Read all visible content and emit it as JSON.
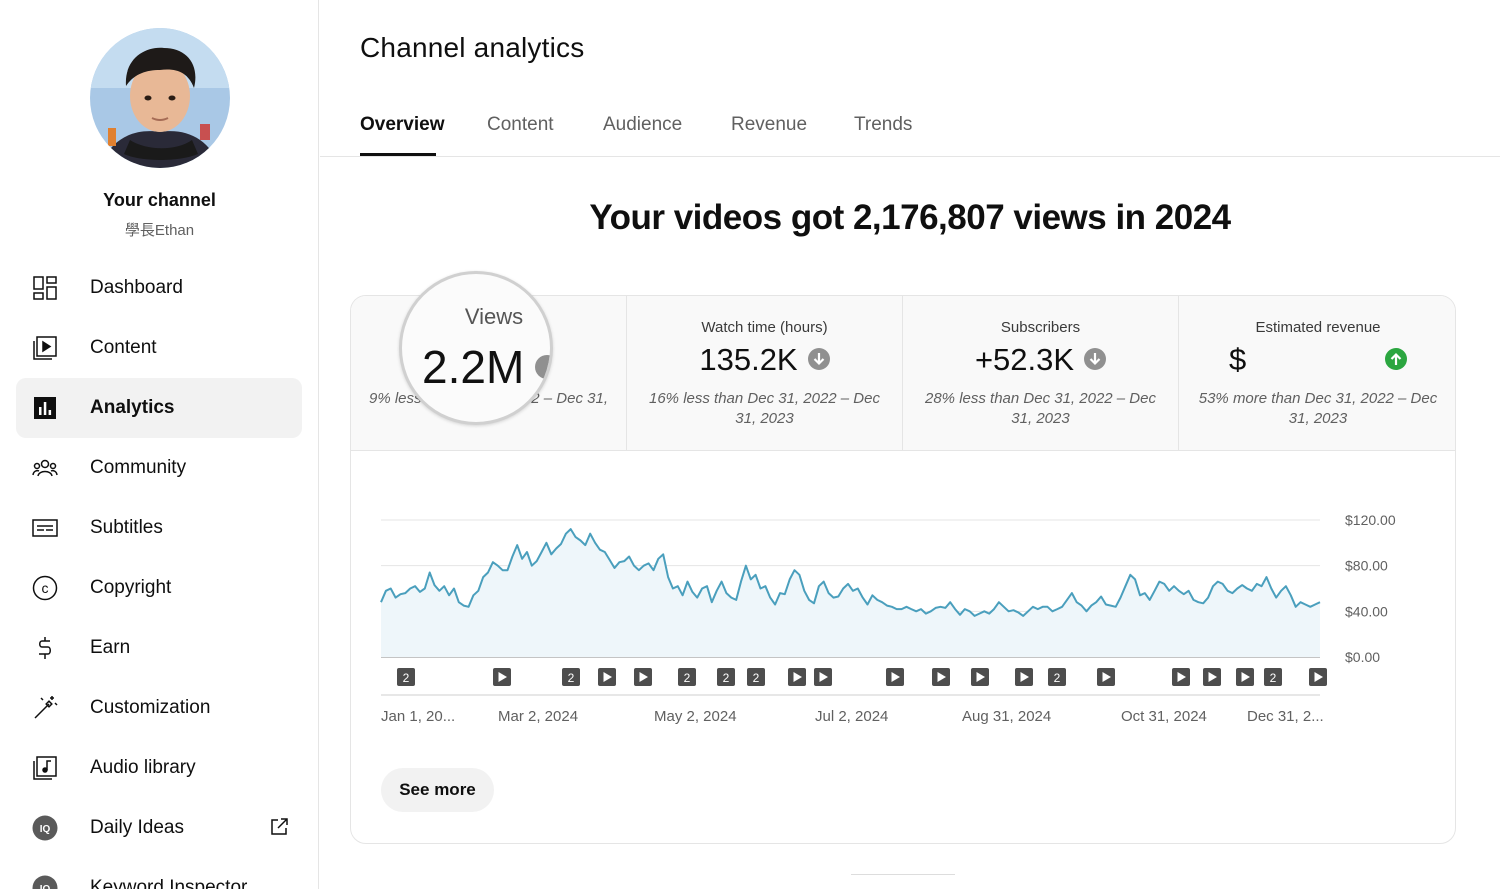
{
  "sidebar": {
    "channel_title": "Your channel",
    "channel_handle": "學長Ethan",
    "items": [
      {
        "label": "Dashboard",
        "icon": "dashboard-icon"
      },
      {
        "label": "Content",
        "icon": "content-icon"
      },
      {
        "label": "Analytics",
        "icon": "analytics-icon",
        "active": true
      },
      {
        "label": "Community",
        "icon": "community-icon"
      },
      {
        "label": "Subtitles",
        "icon": "subtitles-icon"
      },
      {
        "label": "Copyright",
        "icon": "copyright-icon"
      },
      {
        "label": "Earn",
        "icon": "earn-icon"
      },
      {
        "label": "Customization",
        "icon": "customization-icon"
      },
      {
        "label": "Audio library",
        "icon": "audio-library-icon"
      },
      {
        "label": "Daily Ideas",
        "icon": "daily-ideas-icon",
        "external": true
      },
      {
        "label": "Keyword Inspector",
        "icon": "keyword-inspector-icon"
      }
    ]
  },
  "header": {
    "title": "Channel analytics"
  },
  "tabs": [
    {
      "label": "Overview",
      "active": true
    },
    {
      "label": "Content"
    },
    {
      "label": "Audience"
    },
    {
      "label": "Revenue"
    },
    {
      "label": "Trends"
    }
  ],
  "headline": "Your videos got 2,176,807 views in 2024",
  "metrics": [
    {
      "label": "Views",
      "value": "2.2M",
      "comparison_left": "9% less",
      "comparison_right": "2 – Dec 31,",
      "trend": "down"
    },
    {
      "label": "Watch time (hours)",
      "value": "135.2K",
      "comparison": "16% less than Dec 31, 2022 – Dec 31, 2023",
      "trend": "down"
    },
    {
      "label": "Subscribers",
      "value": "+52.3K",
      "comparison": "28% less than Dec 31, 2022 – Dec 31, 2023",
      "trend": "down"
    },
    {
      "label": "Estimated revenue",
      "value": "$",
      "comparison": "53% more than Dec 31, 2022 – Dec 31, 2023",
      "trend": "up"
    }
  ],
  "colors": {
    "line": "#4a9fbd",
    "area": "#eef6fa",
    "trend_down": "#909090",
    "trend_up": "#2ba640"
  },
  "chart_data": {
    "type": "area",
    "x_tick_labels": [
      "Jan 1, 20...",
      "Mar 2, 2024",
      "May 2, 2024",
      "Jul 2, 2024",
      "Aug 31, 2024",
      "Oct 31, 2024",
      "Dec 31, 2..."
    ],
    "y_tick_labels": [
      "$120.00",
      "$80.00",
      "$40.00",
      "$0.00"
    ],
    "ylim": [
      0,
      120
    ],
    "series": [
      {
        "values": [
          48,
          58,
          60,
          52,
          55,
          56,
          60,
          62,
          57,
          60,
          74,
          63,
          58,
          62,
          54,
          60,
          48,
          45,
          44,
          54,
          58,
          70,
          74,
          83,
          80,
          76,
          76,
          88,
          98,
          86,
          92,
          80,
          84,
          92,
          100,
          90,
          95,
          99,
          108,
          112,
          105,
          102,
          98,
          108,
          100,
          94,
          92,
          85,
          78,
          83,
          84,
          88,
          80,
          76,
          80,
          82,
          76,
          86,
          90,
          70,
          60,
          62,
          54,
          66,
          57,
          52,
          60,
          62,
          48,
          58,
          66,
          56,
          52,
          50,
          66,
          80,
          68,
          72,
          60,
          62,
          52,
          46,
          56,
          55,
          68,
          76,
          72,
          58,
          50,
          47,
          62,
          66,
          56,
          52,
          53,
          60,
          64,
          58,
          60,
          52,
          46,
          54,
          50,
          48,
          45,
          44,
          42,
          42,
          44,
          42,
          40,
          42,
          38,
          40,
          43,
          44,
          43,
          48,
          42,
          37,
          42,
          40,
          36,
          38,
          40,
          38,
          42,
          48,
          44,
          40,
          41,
          39,
          36,
          40,
          44,
          42,
          44,
          44,
          40,
          42,
          44,
          50,
          56,
          48,
          45,
          40,
          45,
          48,
          53,
          46,
          45,
          44,
          52,
          62,
          72,
          68,
          54,
          56,
          50,
          58,
          66,
          64,
          58,
          62,
          58,
          55,
          58,
          50,
          48,
          47,
          52,
          62,
          66,
          64,
          58,
          56,
          60,
          63,
          60,
          58,
          64,
          62,
          70,
          60,
          52,
          58,
          62,
          54,
          44,
          48,
          46,
          44,
          46,
          48
        ]
      }
    ],
    "markers": [
      "2",
      "▶",
      "2",
      "▶",
      "▶",
      "2",
      "2",
      "2",
      "▶",
      "▶",
      "▶",
      "▶",
      "▶",
      "▶",
      "2",
      "▶",
      "▶",
      "▶",
      "▶",
      "2",
      "▶"
    ]
  },
  "actions": {
    "see_more": "See more"
  }
}
